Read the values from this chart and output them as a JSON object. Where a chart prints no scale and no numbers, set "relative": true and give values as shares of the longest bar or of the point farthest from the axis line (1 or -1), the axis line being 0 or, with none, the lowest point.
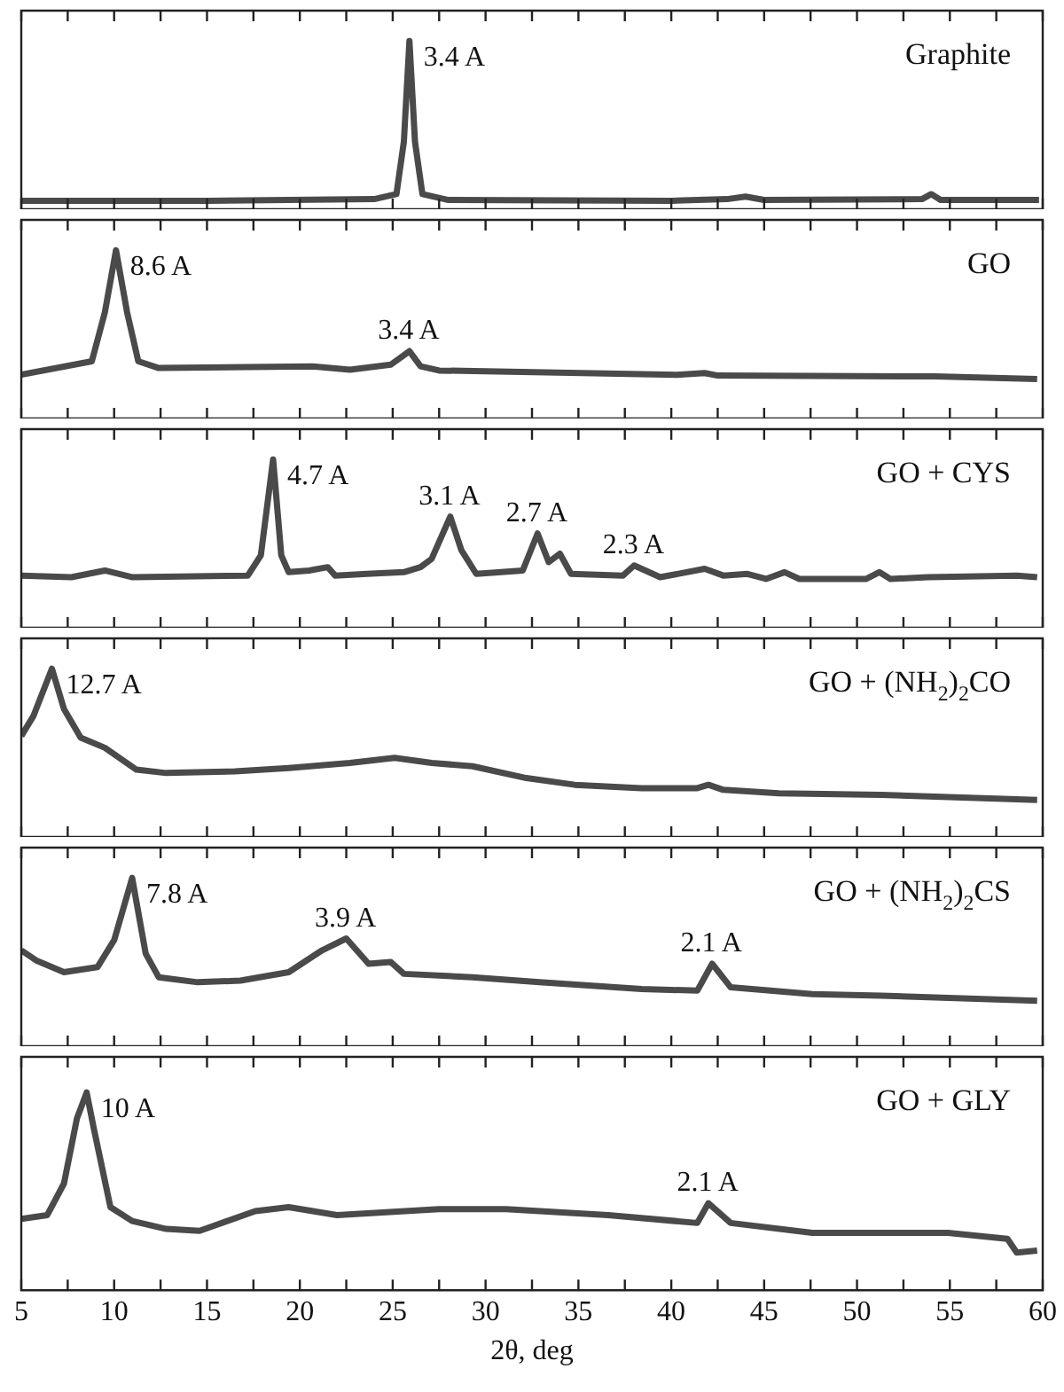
{
  "chart_data": [
    {
      "type": "line",
      "title": "Graphite",
      "relative": true,
      "color": "#4a4a4a",
      "tick_labels": false,
      "xlim": [
        5,
        60
      ],
      "xticks": [
        5,
        {
          "value": 7.5,
          "label": null
        },
        10,
        {
          "value": 12.5,
          "label": null
        },
        15,
        {
          "value": 17.5,
          "label": null
        },
        20,
        {
          "value": 22.5,
          "label": null
        },
        25,
        {
          "value": 27.5,
          "label": null
        },
        30,
        {
          "value": 32.5,
          "label": null
        },
        35,
        {
          "value": 37.5,
          "label": null
        },
        40,
        {
          "value": 42.5,
          "label": null
        },
        45,
        {
          "value": 47.5,
          "label": null
        },
        50,
        {
          "value": 52.5,
          "label": null
        },
        55,
        {
          "value": 57.5,
          "label": null
        },
        60
      ],
      "x": [
        5,
        15,
        24,
        25.2,
        25.6,
        25.9,
        26.2,
        26.6,
        28,
        40,
        43,
        44,
        45,
        53.5,
        54,
        54.5,
        59.8
      ],
      "values": [
        0.05,
        0.05,
        0.06,
        0.09,
        0.4,
        1,
        0.4,
        0.09,
        0.055,
        0.05,
        0.06,
        0.075,
        0.055,
        0.06,
        0.09,
        0.055,
        0.055
      ],
      "annotations": [
        {
          "text": "3.4 A",
          "x": 25.9,
          "y": 1
        }
      ]
    },
    {
      "type": "line",
      "title": "GO",
      "relative": true,
      "color": "#4a4a4a",
      "tick_labels": false,
      "xlim": [
        5,
        60
      ],
      "xticks": [
        5,
        {
          "value": 7.5,
          "label": null
        },
        10,
        {
          "value": 12.5,
          "label": null
        },
        15,
        {
          "value": 17.5,
          "label": null
        },
        20,
        {
          "value": 22.5,
          "label": null
        },
        25,
        {
          "value": 27.5,
          "label": null
        },
        30,
        {
          "value": 32.5,
          "label": null
        },
        35,
        {
          "value": 37.5,
          "label": null
        },
        40,
        {
          "value": 42.5,
          "label": null
        },
        45,
        {
          "value": 47.5,
          "label": null
        },
        50,
        {
          "value": 52.5,
          "label": null
        },
        55,
        {
          "value": 57.5,
          "label": null
        },
        60
      ],
      "x": [
        5,
        8.8,
        9.5,
        10.1,
        10.7,
        11.3,
        12.4,
        20.7,
        22.7,
        24.9,
        25.9,
        26.5,
        27.5,
        40.3,
        41.8,
        42.5,
        54.2,
        59.7
      ],
      "values": [
        0.26,
        0.34,
        0.63,
        1,
        0.63,
        0.34,
        0.3,
        0.31,
        0.29,
        0.32,
        0.4,
        0.31,
        0.285,
        0.26,
        0.27,
        0.255,
        0.25,
        0.235
      ],
      "annotations": [
        {
          "text": "8.6 A",
          "x": 10.1,
          "y": 1
        },
        {
          "text": "3.4 A",
          "x": 25.9,
          "y": 0.4
        }
      ]
    },
    {
      "type": "line",
      "title": "GO + CYS",
      "relative": true,
      "color": "#4a4a4a",
      "tick_labels": false,
      "xlim": [
        5,
        60
      ],
      "xticks": [
        5,
        {
          "value": 7.5,
          "label": null
        },
        10,
        {
          "value": 12.5,
          "label": null
        },
        15,
        {
          "value": 17.5,
          "label": null
        },
        20,
        {
          "value": 22.5,
          "label": null
        },
        25,
        {
          "value": 27.5,
          "label": null
        },
        30,
        {
          "value": 32.5,
          "label": null
        },
        35,
        {
          "value": 37.5,
          "label": null
        },
        40,
        {
          "value": 42.5,
          "label": null
        },
        45,
        {
          "value": 47.5,
          "label": null
        },
        50,
        {
          "value": 52.5,
          "label": null
        },
        55,
        {
          "value": 57.5,
          "label": null
        },
        60
      ],
      "x": [
        5,
        7.7,
        9.5,
        11,
        17.2,
        17.9,
        18.56,
        19,
        19.4,
        20.5,
        21.5,
        21.9,
        23.6,
        25.6,
        26.5,
        27.1,
        28.1,
        28.7,
        29.5,
        32,
        32.8,
        33.4,
        34,
        34.6,
        37.4,
        38,
        39.4,
        41.8,
        42.8,
        44.1,
        45.1,
        46.1,
        46.9,
        50.5,
        51.2,
        51.8,
        53.8,
        58.6,
        59.7
      ],
      "values": [
        0.31,
        0.3,
        0.34,
        0.3,
        0.31,
        0.43,
        1,
        0.43,
        0.33,
        0.34,
        0.36,
        0.31,
        0.32,
        0.33,
        0.36,
        0.41,
        0.66,
        0.46,
        0.32,
        0.34,
        0.56,
        0.39,
        0.44,
        0.32,
        0.31,
        0.37,
        0.3,
        0.35,
        0.31,
        0.32,
        0.29,
        0.33,
        0.29,
        0.29,
        0.33,
        0.29,
        0.3,
        0.31,
        0.3
      ],
      "annotations": [
        {
          "text": "4.7 A",
          "x": 18.56,
          "y": 1
        },
        {
          "text": "3.1 A",
          "x": 28.1,
          "y": 0.66
        },
        {
          "text": "2.7 A",
          "x": 32.8,
          "y": 0.56
        },
        {
          "text": "2.3 A",
          "x": 38,
          "y": 0.37
        }
      ]
    },
    {
      "type": "line",
      "title": "GO + (NH$_{2}$)$_{2}$CO",
      "relative": true,
      "color": "#4a4a4a",
      "tick_labels": false,
      "xlim": [
        5,
        60
      ],
      "xticks": [
        5,
        {
          "value": 7.5,
          "label": null
        },
        10,
        {
          "value": 12.5,
          "label": null
        },
        15,
        {
          "value": 17.5,
          "label": null
        },
        20,
        {
          "value": 22.5,
          "label": null
        },
        25,
        {
          "value": 27.5,
          "label": null
        },
        30,
        {
          "value": 32.5,
          "label": null
        },
        35,
        {
          "value": 37.5,
          "label": null
        },
        40,
        {
          "value": 42.5,
          "label": null
        },
        45,
        {
          "value": 47.5,
          "label": null
        },
        50,
        {
          "value": 52.5,
          "label": null
        },
        55,
        {
          "value": 57.5,
          "label": null
        },
        60
      ],
      "x": [
        5,
        5.66,
        6.65,
        7.3,
        8.2,
        9.5,
        11.2,
        12.8,
        16.5,
        19.4,
        22.7,
        25.1,
        27.1,
        29.3,
        32.2,
        34.8,
        38.4,
        41.4,
        42,
        42.8,
        45.8,
        51.3,
        59.7
      ],
      "values": [
        0.6,
        0.72,
        1,
        0.76,
        0.59,
        0.53,
        0.4,
        0.38,
        0.39,
        0.41,
        0.44,
        0.47,
        0.44,
        0.42,
        0.35,
        0.31,
        0.29,
        0.29,
        0.31,
        0.28,
        0.26,
        0.25,
        0.22
      ],
      "annotations": [
        {
          "text": "12.7 A",
          "x": 6.65,
          "y": 1
        }
      ]
    },
    {
      "type": "line",
      "title": "GO + (NH$_{2}$)$_{2}$CS",
      "relative": true,
      "color": "#4a4a4a",
      "tick_labels": false,
      "xlim": [
        5,
        60
      ],
      "xticks": [
        5,
        {
          "value": 7.5,
          "label": null
        },
        10,
        {
          "value": 12.5,
          "label": null
        },
        15,
        {
          "value": 17.5,
          "label": null
        },
        20,
        {
          "value": 22.5,
          "label": null
        },
        25,
        {
          "value": 27.5,
          "label": null
        },
        30,
        {
          "value": 32.5,
          "label": null
        },
        35,
        {
          "value": 37.5,
          "label": null
        },
        40,
        {
          "value": 42.5,
          "label": null
        },
        45,
        {
          "value": 47.5,
          "label": null
        },
        50,
        {
          "value": 52.5,
          "label": null
        },
        55,
        {
          "value": 57.5,
          "label": null
        },
        60
      ],
      "x": [
        5,
        5.8,
        7.3,
        9.1,
        10,
        10.97,
        11.7,
        12.4,
        14.5,
        16.8,
        19.4,
        21.2,
        22.5,
        23.7,
        24.9,
        25.6,
        29.3,
        32.9,
        38.4,
        41.4,
        42.2,
        43.2,
        47.6,
        51.3,
        59.7
      ],
      "values": [
        0.57,
        0.51,
        0.44,
        0.47,
        0.63,
        1,
        0.55,
        0.41,
        0.38,
        0.39,
        0.44,
        0.57,
        0.64,
        0.49,
        0.5,
        0.43,
        0.41,
        0.38,
        0.34,
        0.33,
        0.49,
        0.35,
        0.31,
        0.3,
        0.27
      ],
      "annotations": [
        {
          "text": "7.8 A",
          "x": 10.97,
          "y": 1
        },
        {
          "text": "3.9 A",
          "x": 22.5,
          "y": 0.64
        },
        {
          "text": "2.1 A",
          "x": 42.2,
          "y": 0.49
        }
      ]
    },
    {
      "type": "line",
      "title": "GO + GLY",
      "relative": true,
      "color": "#4a4a4a",
      "tick_labels": "x",
      "xlabel": "2θ, deg",
      "xlim": [
        5,
        60
      ],
      "xticks": [
        5,
        {
          "value": 7.5,
          "label": null
        },
        10,
        {
          "value": 12.5,
          "label": null
        },
        15,
        {
          "value": 17.5,
          "label": null
        },
        20,
        {
          "value": 22.5,
          "label": null
        },
        25,
        {
          "value": 27.5,
          "label": null
        },
        30,
        {
          "value": 32.5,
          "label": null
        },
        35,
        {
          "value": 37.5,
          "label": null
        },
        40,
        {
          "value": 42.5,
          "label": null
        },
        45,
        {
          "value": 47.5,
          "label": null
        },
        50,
        {
          "value": 52.5,
          "label": null
        },
        55,
        {
          "value": 57.5,
          "label": null
        },
        60
      ],
      "x": [
        5,
        6.4,
        7.3,
        8,
        8.52,
        8.9,
        9.8,
        10.97,
        12.8,
        14.6,
        17.6,
        19.4,
        22,
        27.5,
        31.1,
        36.6,
        41.4,
        42,
        43.2,
        47.6,
        54.9,
        58.1,
        58.6,
        59.7
      ],
      "values": [
        0.36,
        0.38,
        0.54,
        0.87,
        1,
        0.82,
        0.42,
        0.35,
        0.31,
        0.3,
        0.4,
        0.42,
        0.38,
        0.41,
        0.41,
        0.38,
        0.34,
        0.44,
        0.34,
        0.29,
        0.29,
        0.26,
        0.19,
        0.2
      ],
      "annotations": [
        {
          "text": "10 A",
          "x": 8.52,
          "y": 1
        },
        {
          "text": "2.1 A",
          "x": 42,
          "y": 0.44
        }
      ]
    }
  ]
}
